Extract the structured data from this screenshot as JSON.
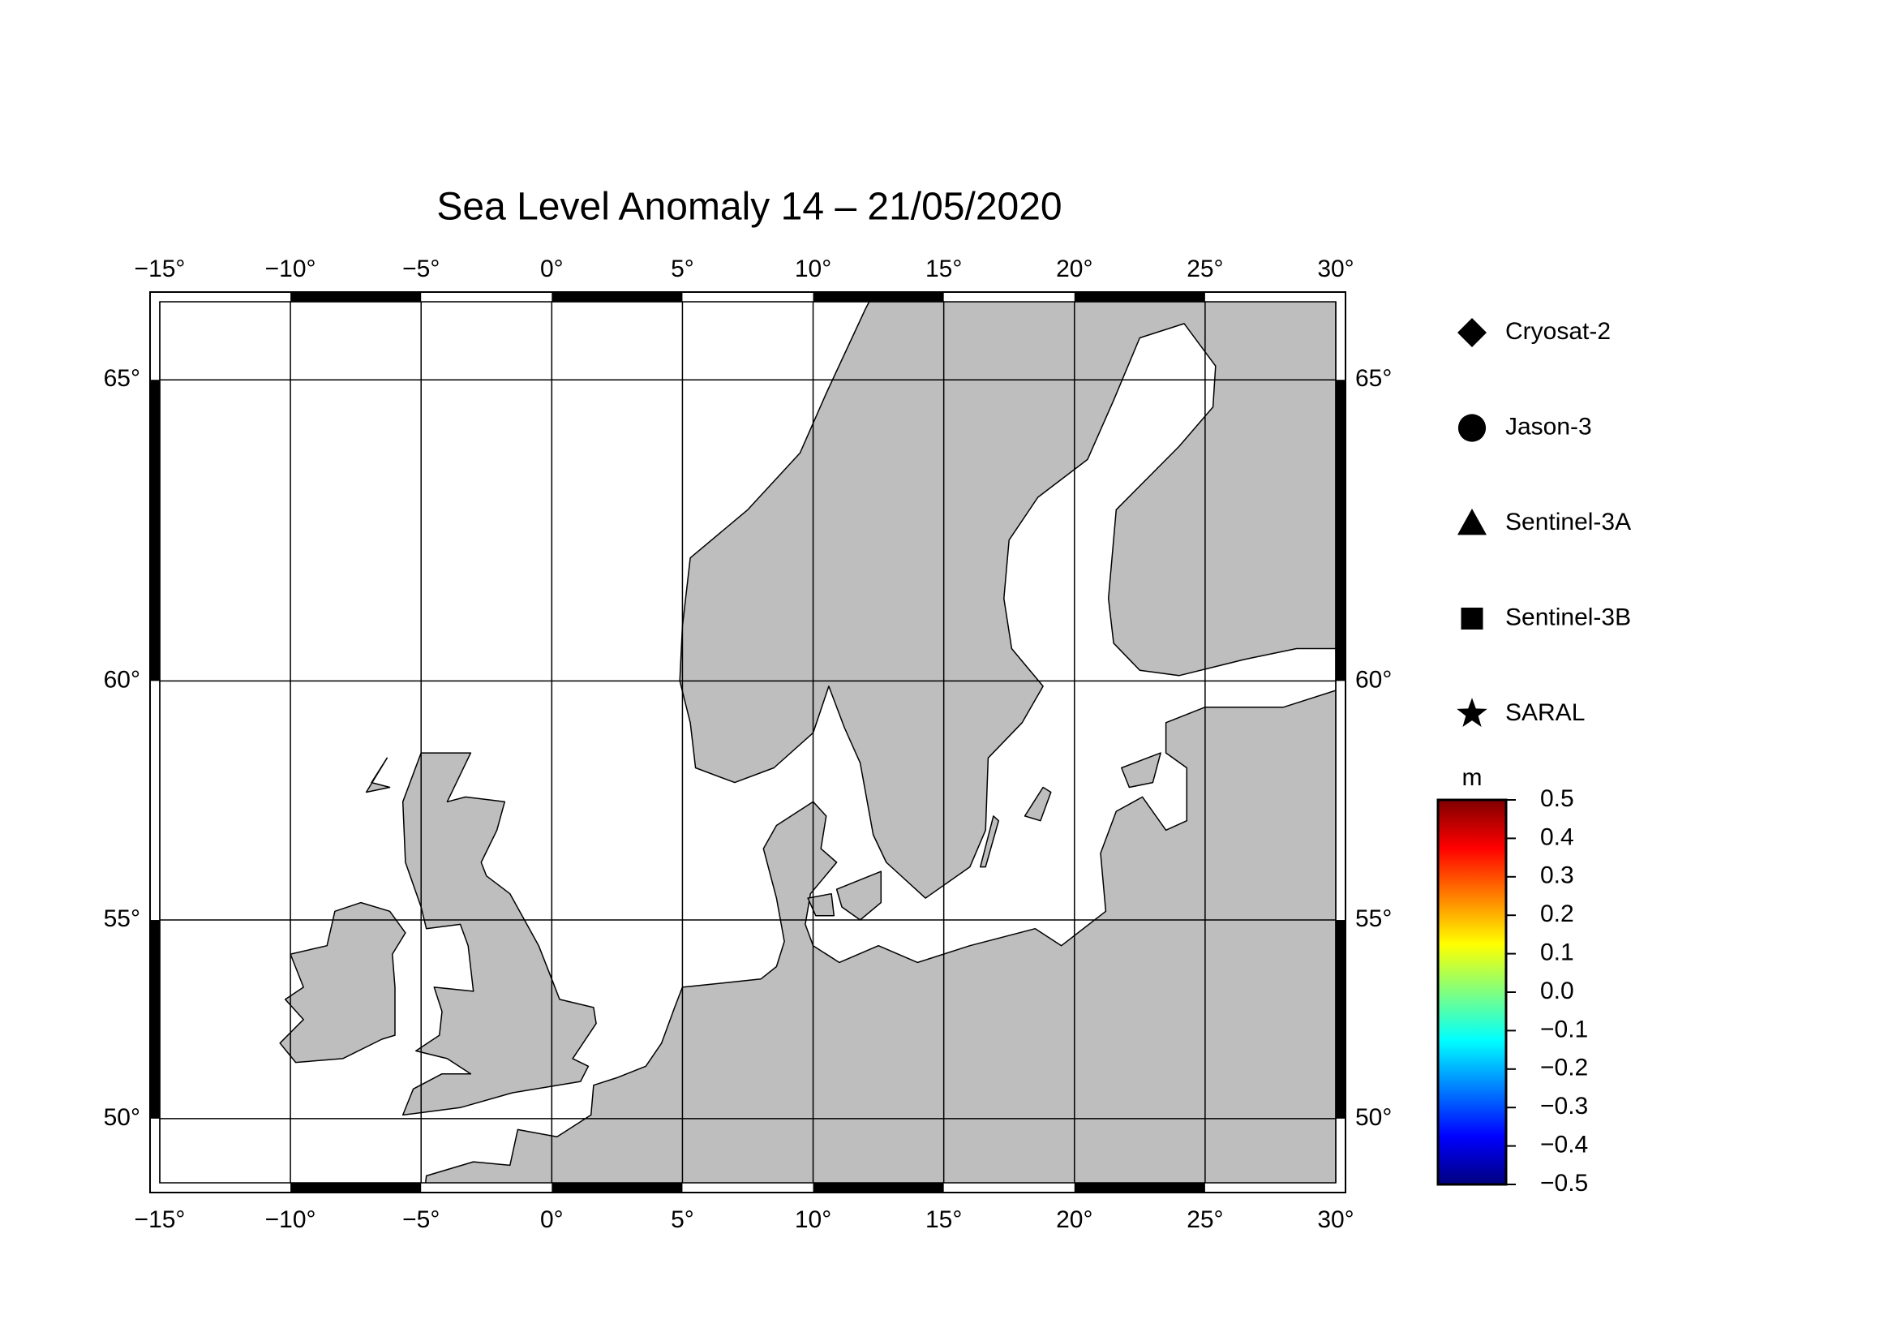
{
  "chart_data": {
    "type": "map",
    "title": "Sea Level Anomaly 14 – 21/05/2020",
    "xlim": [
      -15,
      30
    ],
    "ylim": [
      48.2,
      66.1
    ],
    "xticks": [
      {
        "value": -15,
        "label": "−15°"
      },
      {
        "value": -10,
        "label": "−10°"
      },
      {
        "value": -5,
        "label": "−5°"
      },
      {
        "value": 0,
        "label": "0°"
      },
      {
        "value": 5,
        "label": "5°"
      },
      {
        "value": 10,
        "label": "10°"
      },
      {
        "value": 15,
        "label": "15°"
      },
      {
        "value": 20,
        "label": "20°"
      },
      {
        "value": 25,
        "label": "25°"
      },
      {
        "value": 30,
        "label": "30°"
      }
    ],
    "yticks": [
      {
        "value": 50,
        "label": "50°"
      },
      {
        "value": 55,
        "label": "55°"
      },
      {
        "value": 60,
        "label": "60°"
      },
      {
        "value": 65,
        "label": "65°"
      }
    ],
    "grid": true,
    "legend": [
      {
        "name": "Cryosat-2",
        "marker": "diamond"
      },
      {
        "name": "Jason-3",
        "marker": "circle"
      },
      {
        "name": "Sentinel-3A",
        "marker": "triangle"
      },
      {
        "name": "Sentinel-3B",
        "marker": "square"
      },
      {
        "name": "SARAL",
        "marker": "star"
      }
    ],
    "colorbar": {
      "label": "m",
      "lim": [
        -0.5,
        0.5
      ],
      "ticks": [
        0.5,
        0.4,
        0.3,
        0.2,
        0.1,
        {
          "value": 0,
          "label": "0.0"
        },
        {
          "value": -0.1,
          "label": "−0.1"
        },
        {
          "value": -0.2,
          "label": "−0.2"
        },
        {
          "value": -0.3,
          "label": "−0.3"
        },
        {
          "value": -0.4,
          "label": "−0.4"
        },
        {
          "value": -0.5,
          "label": "−0.5"
        }
      ]
    }
  }
}
